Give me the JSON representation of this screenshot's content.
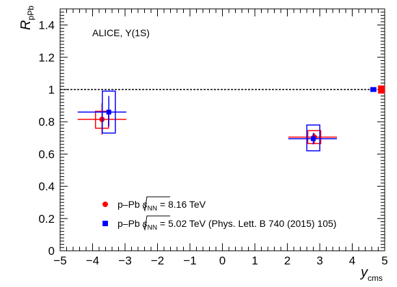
{
  "colors": {
    "series_816": "#ff0000",
    "series_502": "#0000ff",
    "axis": "#000000",
    "reference": "#000000"
  },
  "annotation": "ALICE, Υ(1S)",
  "y_axis_title": {
    "main": "R",
    "sub": "pPb"
  },
  "x_axis_title": {
    "main": "y",
    "sub": "cms"
  },
  "legend": [
    {
      "prefix": "p–Pb ",
      "root": "s",
      "root_sub": "NN",
      "suffix": " = 8.16 TeV",
      "marker": "circle",
      "color_key": "series_816"
    },
    {
      "prefix": "p–Pb ",
      "root": "s",
      "root_sub": "NN",
      "suffix": " = 5.02 TeV (Phys. Lett. B 740 (2015) 105)",
      "marker": "square",
      "color_key": "series_502"
    }
  ],
  "chart_data": {
    "type": "scatter",
    "xlim": [
      -5,
      5
    ],
    "ylim": [
      0,
      1.5
    ],
    "x_ticks": [
      -5,
      -4,
      -3,
      -2,
      -1,
      0,
      1,
      2,
      3,
      4,
      5
    ],
    "x_tick_labels": [
      "−5",
      "−4",
      "−3",
      "−2",
      "−1",
      "0",
      "1",
      "2",
      "3",
      "4",
      "5"
    ],
    "y_ticks": [
      0,
      0.2,
      0.4,
      0.6,
      0.8,
      1,
      1.2,
      1.4
    ],
    "y_tick_labels": [
      "0",
      "0.2",
      "0.4",
      "0.6",
      "0.8",
      "1",
      "1.2",
      "1.4"
    ],
    "reference_line": 1,
    "series": [
      {
        "color_key": "series_816",
        "marker": "circle",
        "points": [
          {
            "x": -3.71,
            "y": 0.815,
            "x_low": -4.46,
            "x_high": -2.96,
            "stat_low": 0.72,
            "stat_high": 0.915,
            "sys_low": 0.76,
            "sys_high": 0.865,
            "sys_width": 0.4
          },
          {
            "x": 2.83,
            "y": 0.705,
            "x_low": 2.03,
            "x_high": 3.53,
            "stat_low": 0.665,
            "stat_high": 0.73,
            "sys_low": 0.665,
            "sys_high": 0.745,
            "sys_width": 0.4
          }
        ],
        "global_uncertainty": {
          "x": 4.9,
          "low": 0.975,
          "high": 1.025
        }
      },
      {
        "color_key": "series_502",
        "marker": "square",
        "points": [
          {
            "x": -3.5,
            "y": 0.86,
            "x_low": -4.46,
            "x_high": -2.96,
            "stat_low": 0.77,
            "stat_high": 0.96,
            "sys_low": 0.73,
            "sys_high": 0.99,
            "sys_width": 0.4
          },
          {
            "x": 2.8,
            "y": 0.695,
            "x_low": 2.03,
            "x_high": 3.53,
            "stat_low": 0.66,
            "stat_high": 0.73,
            "sys_low": 0.62,
            "sys_high": 0.78,
            "sys_width": 0.4
          }
        ],
        "global_uncertainty": {
          "x": 4.65,
          "low": 0.985,
          "high": 1.015
        }
      }
    ],
    "grid": false,
    "legend_position": "bottom"
  }
}
